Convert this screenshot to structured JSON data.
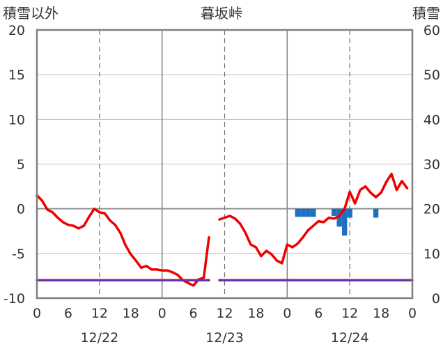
{
  "chart_data": {
    "type": "line",
    "title": "暮坂峠",
    "ylabel_left": "積雪以外",
    "ylabel_right": "積雪",
    "ylim_left": [
      -10,
      20
    ],
    "ylim_right": [
      0,
      60
    ],
    "yticks_left": [
      "20",
      "15",
      "10",
      "5",
      "0",
      "-5",
      "-10"
    ],
    "yticks_right": [
      "60",
      "50",
      "40",
      "30",
      "20",
      "10",
      "0"
    ],
    "x_range_hours": [
      0,
      72
    ],
    "xtick_labels": [
      "0",
      "6",
      "12",
      "18",
      "0",
      "6",
      "12",
      "18",
      "0",
      "6",
      "12",
      "18",
      "0"
    ],
    "date_labels": [
      "12/22",
      "12/23",
      "12/24"
    ],
    "grid": true,
    "colors": {
      "temperature": "#ee0000",
      "snow_depth": "#7030a0",
      "precipitation": "#1f6fc1",
      "axis": "#808080",
      "zero_line": "#909090"
    },
    "series": [
      {
        "key": "temperature",
        "axis": "left",
        "segments": [
          [
            [
              0,
              1.5
            ],
            [
              1,
              0.9
            ],
            [
              2,
              -0.1
            ],
            [
              3,
              -0.4
            ],
            [
              4,
              -1.0
            ],
            [
              5,
              -1.5
            ],
            [
              6,
              -1.8
            ],
            [
              7,
              -1.9
            ],
            [
              8,
              -2.2
            ],
            [
              9,
              -1.9
            ],
            [
              10,
              -0.9
            ],
            [
              11,
              0.0
            ],
            [
              12,
              -0.4
            ],
            [
              13,
              -0.5
            ],
            [
              14,
              -1.3
            ],
            [
              15,
              -1.8
            ],
            [
              16,
              -2.7
            ],
            [
              17,
              -4.1
            ],
            [
              18,
              -5.1
            ],
            [
              19,
              -5.8
            ],
            [
              20,
              -6.6
            ],
            [
              21,
              -6.4
            ],
            [
              22,
              -6.8
            ],
            [
              23,
              -6.8
            ],
            [
              24,
              -6.9
            ],
            [
              25,
              -6.9
            ],
            [
              26,
              -7.1
            ],
            [
              27,
              -7.4
            ],
            [
              28,
              -8.0
            ],
            [
              29,
              -8.3
            ],
            [
              30,
              -8.6
            ],
            [
              31,
              -7.9
            ],
            [
              32,
              -7.7
            ],
            [
              33,
              -3.2
            ]
          ],
          [
            [
              35,
              -1.2
            ],
            [
              36,
              -1.0
            ],
            [
              37,
              -0.8
            ],
            [
              38,
              -1.1
            ],
            [
              39,
              -1.7
            ],
            [
              40,
              -2.7
            ],
            [
              41,
              -4.0
            ],
            [
              42,
              -4.3
            ],
            [
              43,
              -5.3
            ],
            [
              44,
              -4.7
            ],
            [
              45,
              -5.1
            ],
            [
              46,
              -5.8
            ],
            [
              47,
              -6.1
            ],
            [
              48,
              -4.0
            ],
            [
              49,
              -4.3
            ],
            [
              50,
              -3.9
            ],
            [
              51,
              -3.2
            ],
            [
              52,
              -2.4
            ],
            [
              53,
              -1.9
            ],
            [
              54,
              -1.4
            ],
            [
              55,
              -1.5
            ],
            [
              56,
              -1.0
            ],
            [
              57,
              -1.1
            ],
            [
              58,
              -0.8
            ],
            [
              59,
              0.0
            ],
            [
              60,
              1.9
            ],
            [
              61,
              0.6
            ],
            [
              62,
              2.1
            ],
            [
              63,
              2.5
            ],
            [
              64,
              1.8
            ],
            [
              65,
              1.3
            ],
            [
              66,
              1.8
            ],
            [
              67,
              3.0
            ],
            [
              68,
              3.9
            ],
            [
              69,
              2.1
            ],
            [
              70,
              3.1
            ],
            [
              71,
              2.3
            ]
          ]
        ]
      },
      {
        "key": "snow_depth",
        "axis": "right",
        "segments": [
          [
            [
              0,
              4
            ],
            [
              33,
              4
            ]
          ],
          [
            [
              35,
              4
            ],
            [
              72,
              4
            ]
          ]
        ]
      },
      {
        "key": "precipitation",
        "axis": "left",
        "type": "bar",
        "bars": [
          [
            50,
            -0.9
          ],
          [
            51,
            -0.9
          ],
          [
            52,
            -0.9
          ],
          [
            53,
            -0.9
          ],
          [
            57,
            -0.8
          ],
          [
            58,
            -2.0
          ],
          [
            59,
            -3.0
          ],
          [
            60,
            -1.0
          ],
          [
            65,
            -1.0
          ]
        ]
      }
    ]
  }
}
